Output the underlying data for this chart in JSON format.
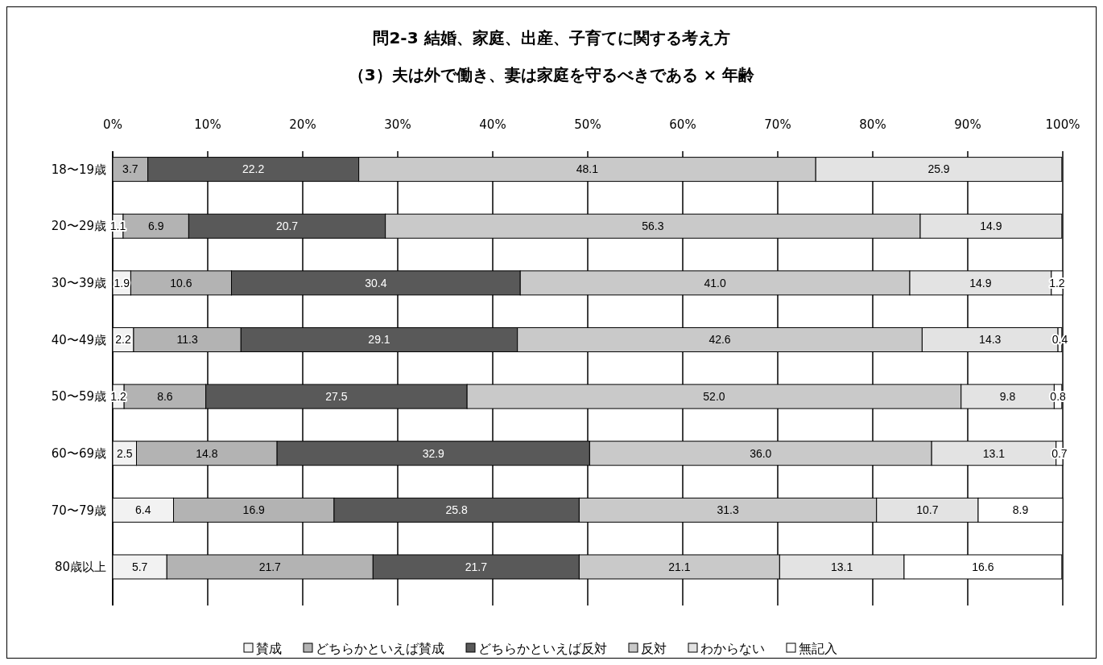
{
  "chart_data": {
    "type": "bar",
    "orientation": "horizontal",
    "stacked": true,
    "title": "問2-3 結婚、家庭、出産、子育てに関する考え方",
    "subtitle": "（3）夫は外で働き、妻は家庭を守るべきである × 年齢",
    "categories": [
      "18〜19歳",
      "20〜29歳",
      "30〜39歳",
      "40〜49歳",
      "50〜59歳",
      "60〜69歳",
      "70〜79歳",
      "80歳以上"
    ],
    "series": [
      {
        "name": "賛成",
        "color": "#f2f2f2",
        "values": [
          null,
          1.1,
          1.9,
          2.2,
          1.2,
          2.5,
          6.4,
          5.7
        ],
        "value_labels": [
          null,
          "1.1",
          "1.9",
          "2.2",
          "1.2",
          "2.5",
          "6.4",
          "5.7"
        ]
      },
      {
        "name": "どちらかといえば賛成",
        "color": "#b3b3b3",
        "values": [
          3.7,
          6.9,
          10.6,
          11.3,
          8.6,
          14.8,
          16.9,
          21.7
        ],
        "value_labels": [
          "3.7",
          "6.9",
          "10.6",
          "11.3",
          "8.6",
          "14.8",
          "16.9",
          "21.7"
        ]
      },
      {
        "name": "どちらかといえば反対",
        "color": "#595959",
        "values": [
          22.2,
          20.7,
          30.4,
          29.1,
          27.5,
          32.9,
          25.8,
          21.7
        ],
        "value_labels": [
          "22.2",
          "20.7",
          "30.4",
          "29.1",
          "27.5",
          "32.9",
          "25.8",
          "21.7"
        ]
      },
      {
        "name": "反対",
        "color": "#c9c9c9",
        "values": [
          48.1,
          56.3,
          41.0,
          42.6,
          52.0,
          36.0,
          31.3,
          21.1
        ],
        "value_labels": [
          "48.1",
          "56.3",
          "41.0",
          "42.6",
          "52.0",
          "36.0",
          "31.3",
          "21.1"
        ]
      },
      {
        "name": "わからない",
        "color": "#e3e3e3",
        "values": [
          25.9,
          14.9,
          14.9,
          14.3,
          9.8,
          13.1,
          10.7,
          13.1
        ],
        "value_labels": [
          "25.9",
          "14.9",
          "14.9",
          "14.3",
          "9.8",
          "13.1",
          "10.7",
          "13.1"
        ]
      },
      {
        "name": "無記入",
        "color": "#ffffff",
        "values": [
          null,
          null,
          1.2,
          0.4,
          0.8,
          0.7,
          8.9,
          16.6
        ],
        "value_labels": [
          null,
          null,
          "1.2",
          "0.4",
          "0.8",
          "0.7",
          "8.9",
          "16.6"
        ]
      }
    ],
    "xlim": [
      0,
      100
    ],
    "xticks": [
      {
        "value": 0,
        "label": "0%"
      },
      {
        "value": 10,
        "label": "10%"
      },
      {
        "value": 20,
        "label": "20%"
      },
      {
        "value": 30,
        "label": "30%"
      },
      {
        "value": 40,
        "label": "40%"
      },
      {
        "value": 50,
        "label": "50%"
      },
      {
        "value": 60,
        "label": "60%"
      },
      {
        "value": 70,
        "label": "70%"
      },
      {
        "value": 80,
        "label": "80%"
      },
      {
        "value": 90,
        "label": "90%"
      },
      {
        "value": 100,
        "label": "100%"
      }
    ],
    "grid": "x",
    "legend": "bottom"
  }
}
